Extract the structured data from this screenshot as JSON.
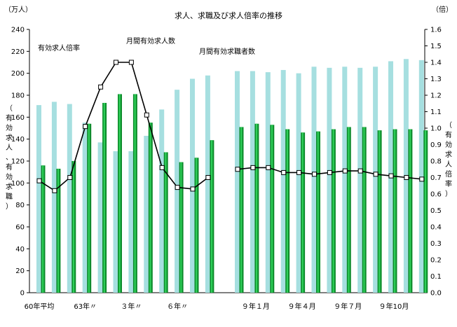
{
  "chart_data": {
    "type": "bar+line",
    "title": "求人、求職及び求人倍率の推移",
    "left_axis": {
      "unit": "（万人）",
      "label_chars": [
        "（",
        "有",
        "効",
        "求",
        "人",
        "、",
        "有",
        "効",
        "求",
        "職",
        "）"
      ],
      "ylim": [
        0,
        240
      ],
      "ticks": [
        0,
        20,
        40,
        60,
        80,
        100,
        120,
        140,
        160,
        180,
        200,
        220,
        240
      ]
    },
    "right_axis": {
      "unit": "（倍）",
      "label_chars": [
        "（",
        "有",
        "効",
        "求",
        "人",
        "倍",
        "率",
        "）"
      ],
      "ylim": [
        0,
        1.6
      ],
      "ticks": [
        "0.0",
        "0.1",
        "0.2",
        "0.3",
        "0.4",
        "0.5",
        "0.6",
        "0.7",
        "0.8",
        "0.9",
        "1.0",
        "1.1",
        "1.2",
        "1.3",
        "1.4",
        "1.5",
        "1.6"
      ]
    },
    "x_tick_labels": [
      "60年平均",
      "63年〃",
      "３年〃",
      "６年〃",
      "９年１月",
      "９年４月",
      "９年７月",
      "９年10月"
    ],
    "annotations": [
      "有効求人倍率",
      "月間有効求人数",
      "月間有効求職者数"
    ],
    "series": [
      {
        "name": "月間有効求職者数",
        "axis": "left",
        "color": "#a6dfe0",
        "groups": [
          [
            171,
            174,
            172,
            155,
            137,
            129,
            129,
            143,
            167,
            185,
            195,
            198
          ],
          [
            202,
            202,
            201,
            203,
            200,
            206,
            205,
            206,
            205,
            206,
            211,
            213,
            212
          ]
        ]
      },
      {
        "name": "月間有効求人数",
        "axis": "left",
        "color": "#0e8c2c",
        "groups": [
          [
            116,
            113,
            120,
            154,
            173,
            181,
            181,
            155,
            128,
            119,
            123,
            139
          ],
          [
            151,
            154,
            153,
            149,
            146,
            147,
            149,
            151,
            151,
            148,
            149,
            149,
            148
          ]
        ]
      },
      {
        "name": "有効求人倍率",
        "axis": "right",
        "color": "#000000",
        "groups": [
          [
            0.68,
            0.62,
            0.7,
            1.01,
            1.25,
            1.4,
            1.4,
            1.08,
            0.76,
            0.64,
            0.63,
            0.7
          ],
          [
            0.75,
            0.76,
            0.76,
            0.73,
            0.73,
            0.72,
            0.73,
            0.74,
            0.74,
            0.72,
            0.71,
            0.7,
            0.69
          ]
        ]
      }
    ]
  }
}
